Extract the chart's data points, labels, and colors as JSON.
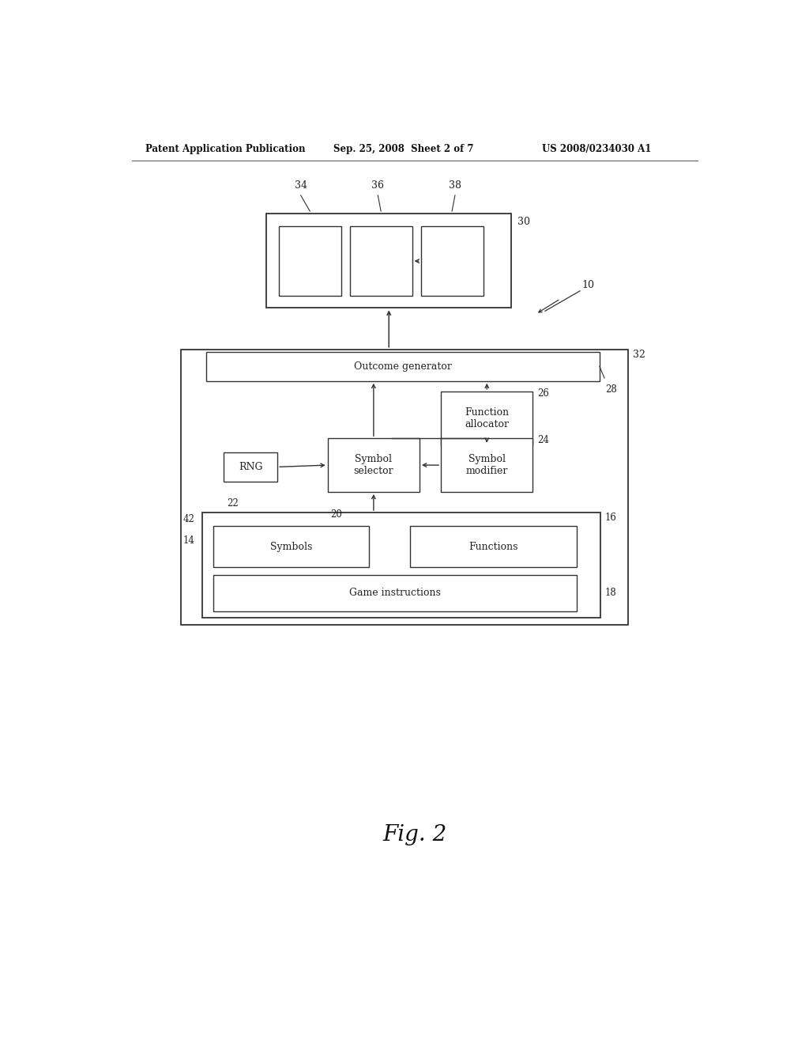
{
  "bg_color": "#ffffff",
  "header_left": "Patent Application Publication",
  "header_mid": "Sep. 25, 2008  Sheet 2 of 7",
  "header_right": "US 2008/0234030 A1",
  "fig_label": "Fig. 2",
  "label_10": "10",
  "label_30": "30",
  "label_32": "32",
  "label_28": "28",
  "label_26": "26",
  "label_24": "24",
  "label_22": "22",
  "label_20": "20",
  "label_16": "16",
  "label_18": "18",
  "label_14": "14",
  "label_42": "42",
  "label_34": "34",
  "label_36": "36",
  "label_38": "38",
  "text_outcome_gen": "Outcome generator",
  "text_function_alloc": "Function\nallocator",
  "text_symbol_selector": "Symbol\nselector",
  "text_symbol_modifier": "Symbol\nmodifier",
  "text_rng": "RNG",
  "text_symbols": "Symbols",
  "text_functions": "Functions",
  "text_game_instructions": "Game instructions"
}
